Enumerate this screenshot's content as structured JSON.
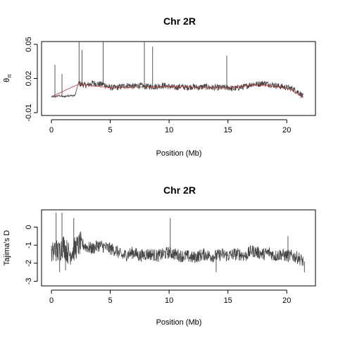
{
  "chart_data": [
    {
      "type": "line",
      "title": "Chr 2R",
      "xlabel": "Position (Mb)",
      "ylabel": "θπ",
      "ylabel_main": "θ",
      "ylabel_sub": "π",
      "xlim": [
        0,
        21.6
      ],
      "ylim": [
        -0.01,
        0.05
      ],
      "xticks": [
        0,
        5,
        10,
        15,
        20
      ],
      "xtick_labels": [
        "0",
        "5",
        "10",
        "15",
        "20"
      ],
      "yticks": [
        -0.01,
        0.02,
        0.05
      ],
      "ytick_labels": [
        "-0.01",
        "0.02",
        "0.05"
      ],
      "grid": false,
      "legend": "none",
      "series": [
        {
          "color": "#444444",
          "x": [
            0.0,
            0.3,
            0.6,
            1.0,
            1.5,
            2.0,
            2.3,
            2.5,
            3.0,
            3.5,
            4.0,
            4.4,
            5.0,
            5.5,
            6.0,
            6.5,
            7.0,
            7.5,
            7.9,
            8.5,
            9.0,
            9.5,
            10.0,
            10.5,
            11.0,
            11.5,
            12.0,
            12.5,
            13.0,
            13.5,
            14.0,
            14.5,
            15.0,
            15.5,
            16.0,
            16.5,
            17.0,
            17.5,
            18.0,
            18.5,
            19.0,
            19.5,
            20.0,
            20.5,
            21.0,
            21.4
          ],
          "values": [
            0.004,
            0.004,
            0.005,
            0.004,
            0.005,
            0.005,
            0.016,
            0.015,
            0.014,
            0.016,
            0.015,
            0.015,
            0.012,
            0.012,
            0.013,
            0.014,
            0.013,
            0.014,
            0.013,
            0.013,
            0.013,
            0.014,
            0.013,
            0.012,
            0.013,
            0.012,
            0.013,
            0.012,
            0.013,
            0.012,
            0.012,
            0.012,
            0.012,
            0.011,
            0.012,
            0.013,
            0.015,
            0.015,
            0.016,
            0.015,
            0.014,
            0.013,
            0.012,
            0.011,
            0.008,
            0.004
          ]
        },
        {
          "color": "#cc3333",
          "x": [
            0.0,
            2.3,
            5.0,
            10.0,
            15.0,
            17.5,
            20.0,
            21.4
          ],
          "values": [
            0.004,
            0.015,
            0.012,
            0.013,
            0.012,
            0.015,
            0.012,
            0.004
          ]
        }
      ],
      "spikes": [
        {
          "x": 0.3,
          "value": 0.032
        },
        {
          "x": 0.9,
          "value": 0.024
        },
        {
          "x": 2.35,
          "value": 0.052
        },
        {
          "x": 2.6,
          "value": 0.045
        },
        {
          "x": 4.4,
          "value": 0.052
        },
        {
          "x": 7.9,
          "value": 0.052
        },
        {
          "x": 8.6,
          "value": 0.048
        },
        {
          "x": 14.9,
          "value": 0.04
        }
      ]
    },
    {
      "type": "line",
      "title": "Chr 2R",
      "xlabel": "Position (Mb)",
      "ylabel": "Tajima's D",
      "xlim": [
        0,
        21.6
      ],
      "ylim": [
        -3.1,
        0.8
      ],
      "xticks": [
        0,
        5,
        10,
        15,
        20
      ],
      "xtick_labels": [
        "0",
        "5",
        "10",
        "15",
        "20"
      ],
      "yticks": [
        -3,
        -2,
        -1,
        0
      ],
      "ytick_labels": [
        "-3",
        "-2",
        "-1",
        "0"
      ],
      "grid": false,
      "legend": "none",
      "series": [
        {
          "color": "#444444",
          "x": [
            0.0,
            0.3,
            0.6,
            1.0,
            1.5,
            2.0,
            2.5,
            3.0,
            3.5,
            4.0,
            4.5,
            5.0,
            5.5,
            6.0,
            6.5,
            7.0,
            7.5,
            8.0,
            8.5,
            9.0,
            9.5,
            10.0,
            10.5,
            11.0,
            11.5,
            12.0,
            12.5,
            13.0,
            13.5,
            14.0,
            14.5,
            15.0,
            15.5,
            16.0,
            16.5,
            17.0,
            17.5,
            18.0,
            18.5,
            19.0,
            19.5,
            20.0,
            20.5,
            21.0,
            21.4
          ],
          "values": [
            -1.6,
            -1.2,
            -1.4,
            -1.0,
            -1.5,
            -1.2,
            -0.9,
            -1.1,
            -1.2,
            -1.0,
            -1.1,
            -1.2,
            -1.3,
            -1.6,
            -1.5,
            -1.4,
            -1.6,
            -1.5,
            -1.5,
            -1.6,
            -1.5,
            -1.4,
            -1.5,
            -1.6,
            -1.6,
            -1.7,
            -1.6,
            -1.5,
            -1.6,
            -1.6,
            -1.5,
            -1.6,
            -1.5,
            -1.5,
            -1.6,
            -1.3,
            -1.4,
            -1.5,
            -1.4,
            -1.6,
            -1.5,
            -1.6,
            -1.6,
            -1.7,
            -1.9
          ]
        }
      ],
      "spikes": [
        {
          "x": 0.4,
          "value": 0.8
        },
        {
          "x": 0.7,
          "value": -2.5
        },
        {
          "x": 0.9,
          "value": 0.8
        },
        {
          "x": 1.2,
          "value": -2.4
        },
        {
          "x": 1.9,
          "value": 0.5
        },
        {
          "x": 10.1,
          "value": 0.5
        },
        {
          "x": 14.0,
          "value": -2.5
        },
        {
          "x": 20.1,
          "value": -0.5
        },
        {
          "x": 21.5,
          "value": -2.5
        }
      ]
    }
  ]
}
